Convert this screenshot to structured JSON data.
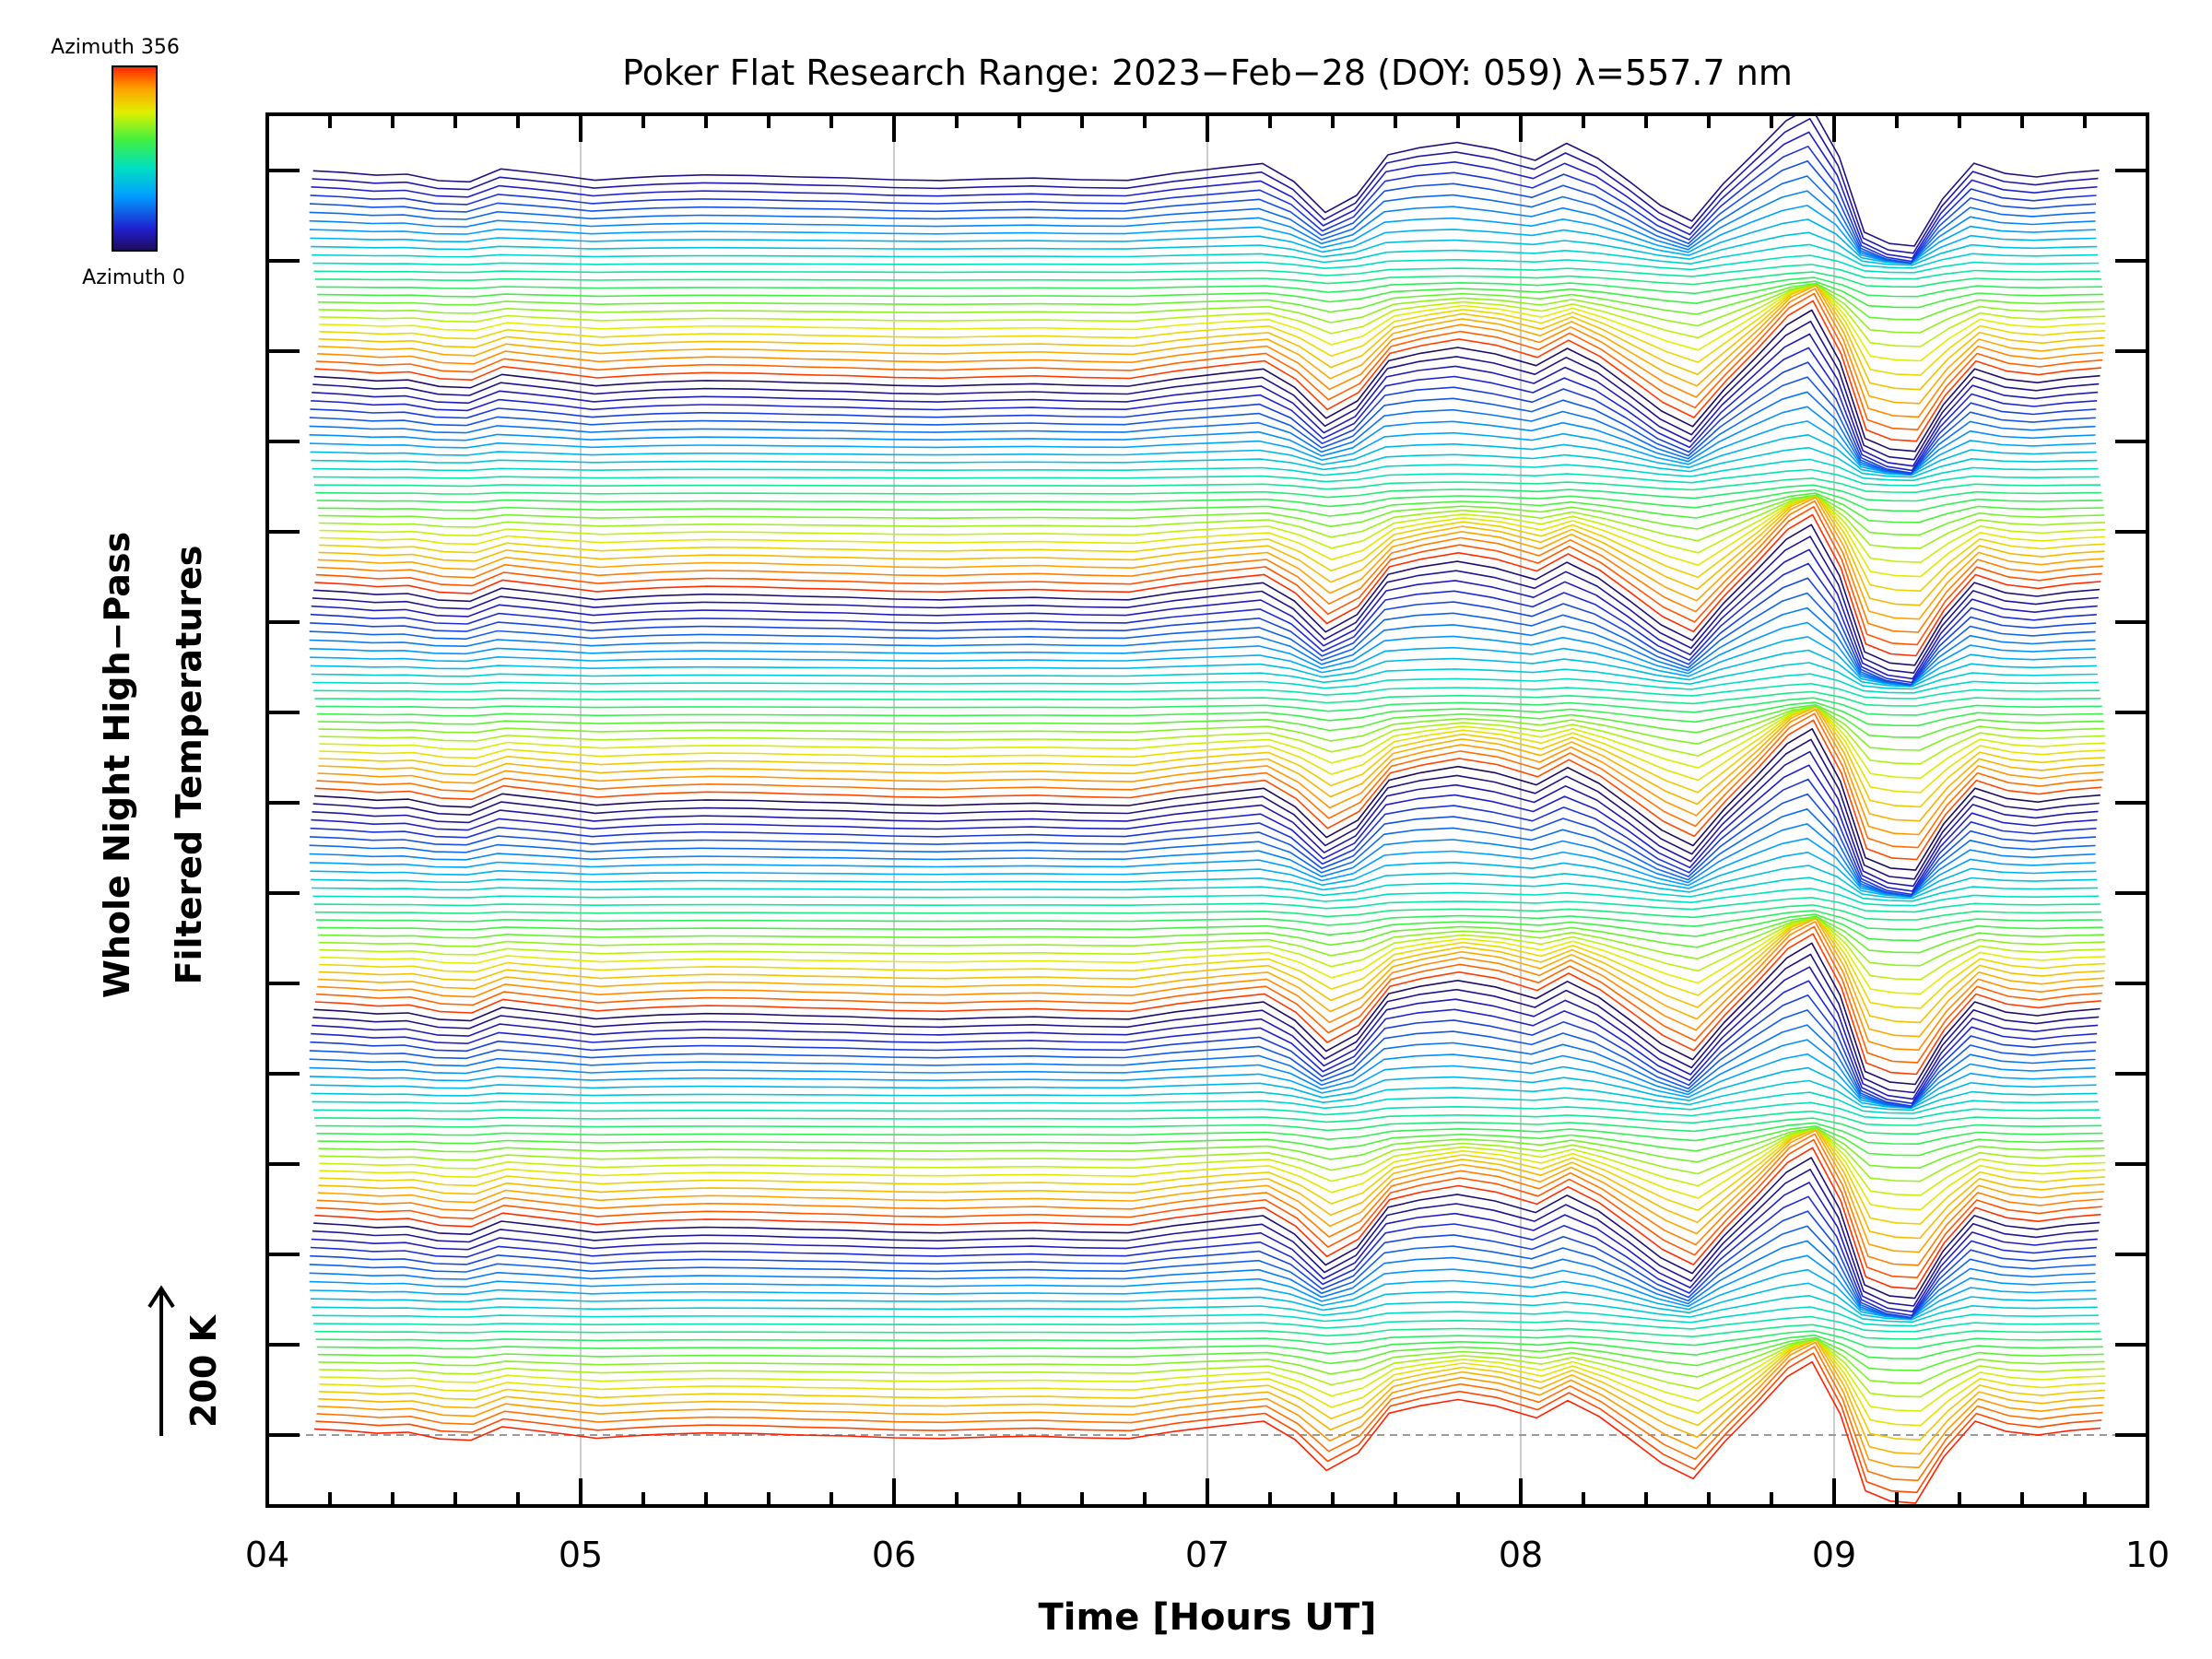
{
  "chart_data": {
    "type": "line",
    "title": "Poker Flat Research Range: 2023−Feb−28 (DOY: 059) λ=557.7 nm",
    "xlabel": "Time [Hours UT]",
    "ylabel_line1": "Whole Night High−Pass",
    "ylabel_line2": "Filtered Temperatures",
    "xlim": [
      4,
      10
    ],
    "x_tick_labels": [
      "04",
      "05",
      "06",
      "07",
      "08",
      "09",
      "10"
    ],
    "y_tick_count": 15,
    "grid": "vertical lines at hour marks",
    "scale_bar_label": "200 K",
    "colorbar": {
      "label_top": "Azimuth 356",
      "label_bottom": "Azimuth 0",
      "colormap": "rainbow",
      "range": [
        0,
        356
      ]
    },
    "series_count": 160,
    "azimuth_cycles": 6,
    "time_hours": [
      4.15,
      4.25,
      4.35,
      4.45,
      4.55,
      4.65,
      4.75,
      4.85,
      4.95,
      5.05,
      5.15,
      5.25,
      5.4,
      5.55,
      5.7,
      5.85,
      6.0,
      6.15,
      6.3,
      6.45,
      6.6,
      6.75,
      6.9,
      7.05,
      7.18,
      7.28,
      7.38,
      7.48,
      7.58,
      7.68,
      7.8,
      7.92,
      8.05,
      8.15,
      8.25,
      8.35,
      8.45,
      8.55,
      8.65,
      8.75,
      8.85,
      8.93,
      9.02,
      9.1,
      9.18,
      9.26,
      9.35,
      9.45,
      9.55,
      9.65,
      9.75,
      9.85
    ],
    "template_profile_K": [
      15,
      12,
      5,
      8,
      -10,
      -12,
      18,
      10,
      2,
      -8,
      -3,
      2,
      6,
      4,
      0,
      -2,
      -6,
      -8,
      -5,
      -3,
      -8,
      -10,
      10,
      22,
      30,
      -10,
      -80,
      -45,
      60,
      85,
      100,
      75,
      40,
      75,
      40,
      -10,
      -70,
      -120,
      -20,
      70,
      150,
      170,
      45,
      -120,
      -150,
      -170,
      -60,
      40,
      10,
      0,
      10,
      15
    ],
    "colors": {
      "axes": "#000000",
      "grid": "#cccccc",
      "baseline": "#999999"
    }
  }
}
